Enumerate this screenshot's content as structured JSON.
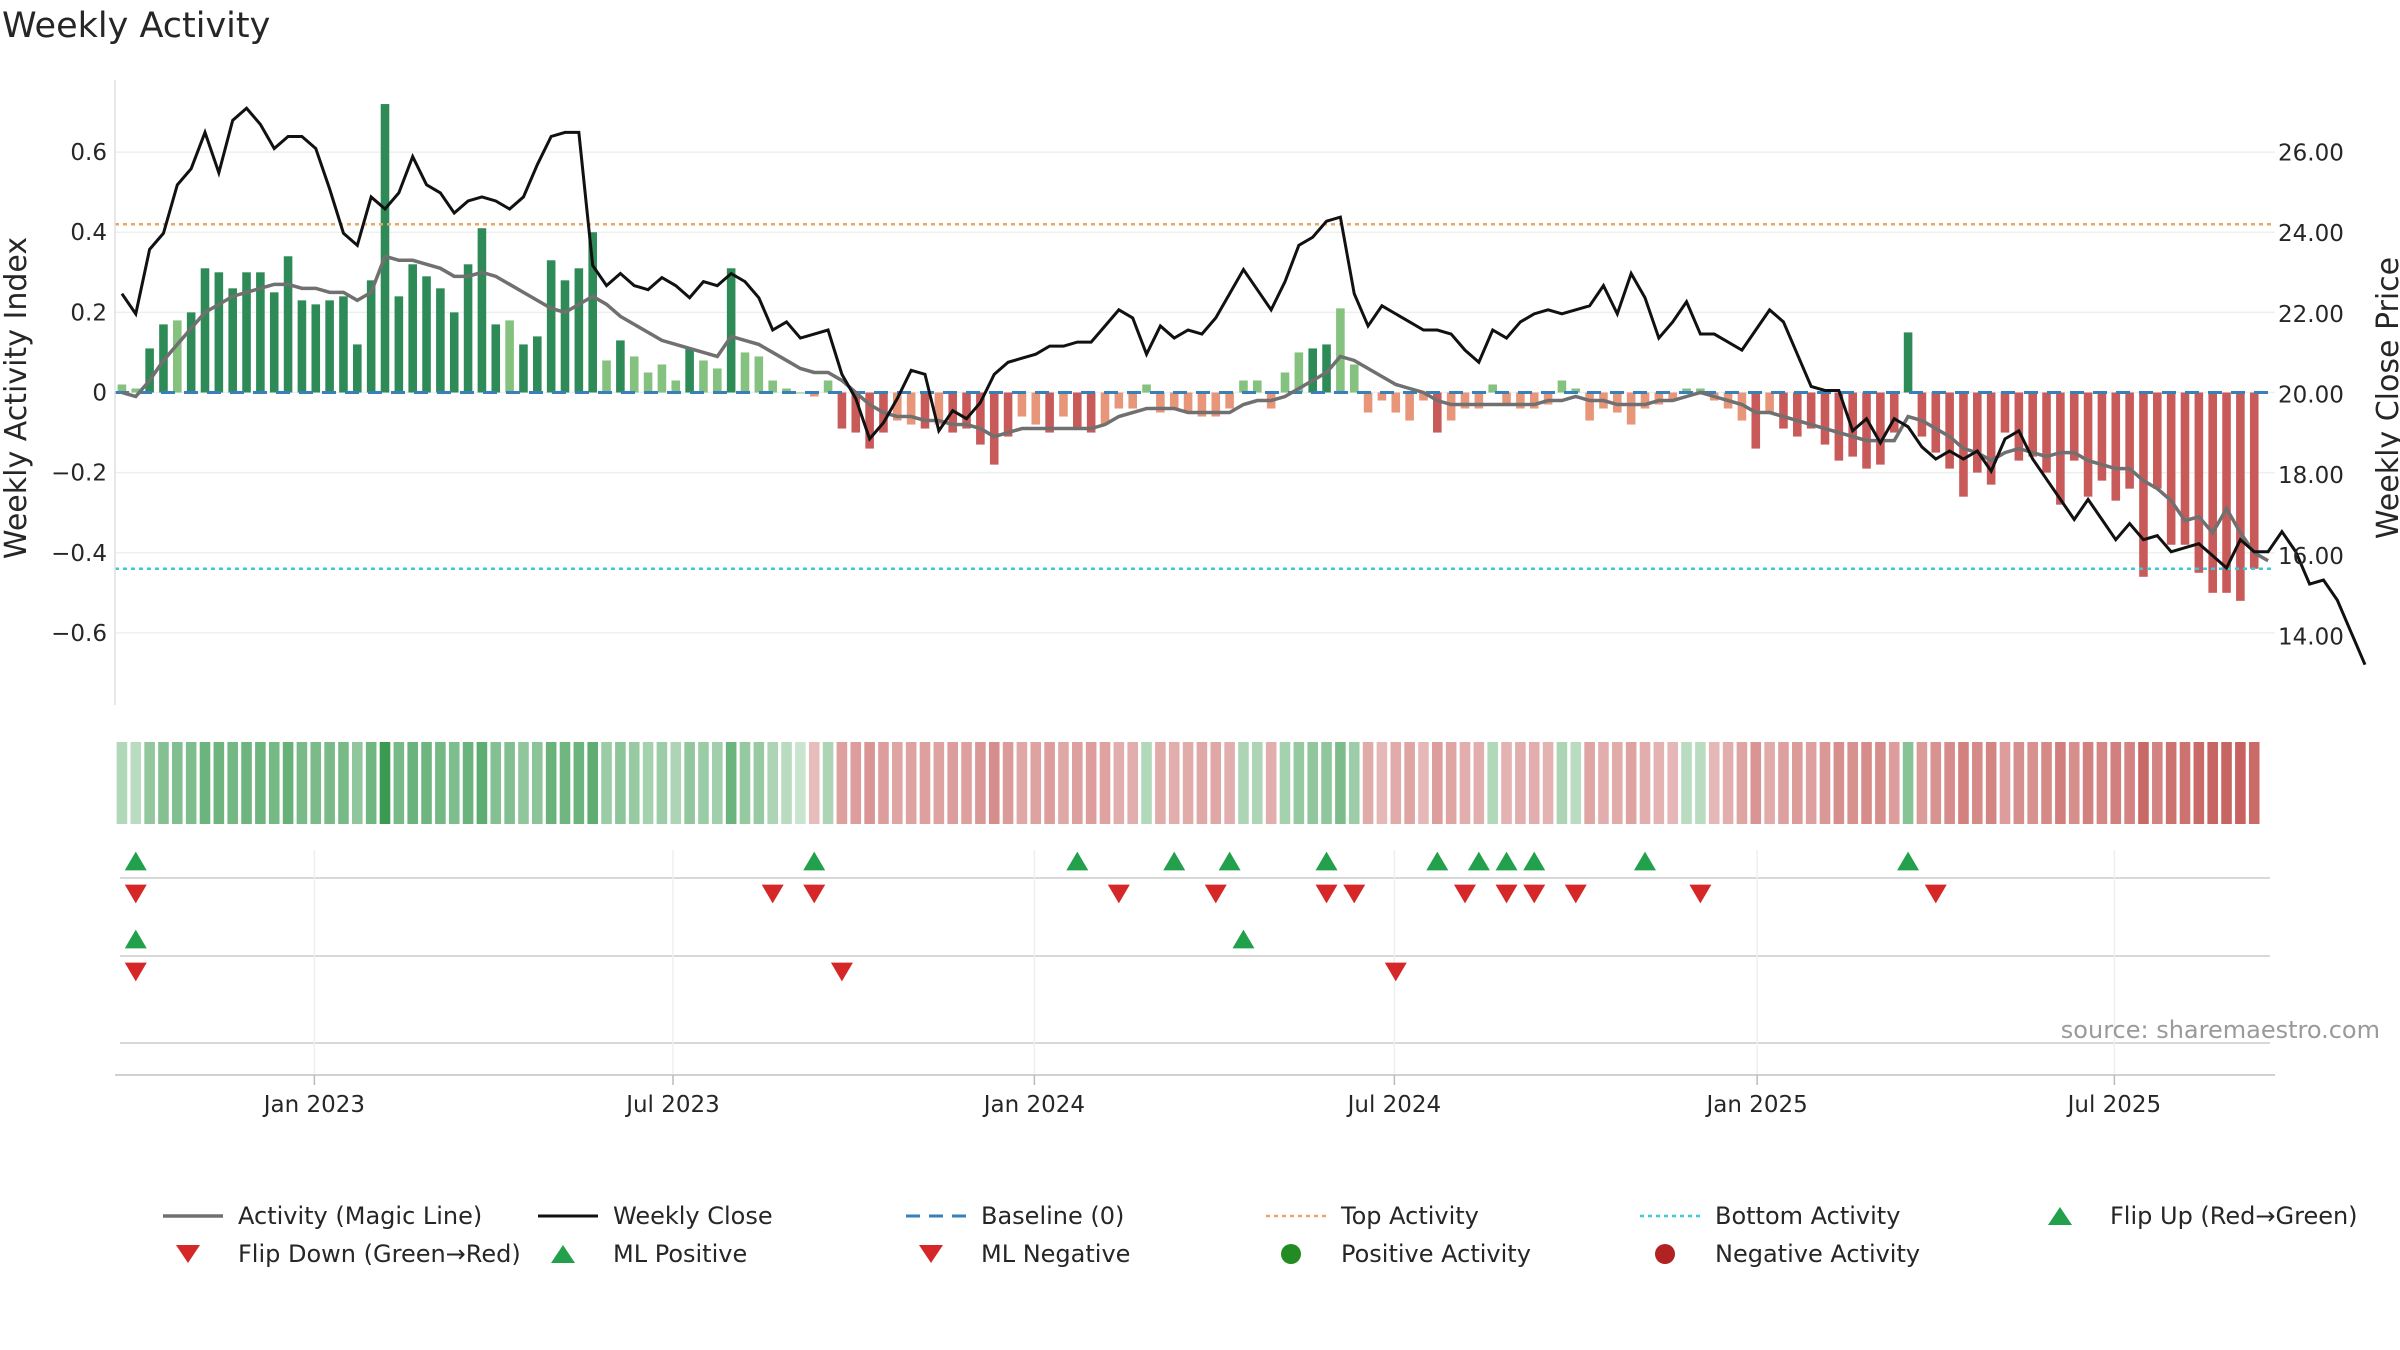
{
  "chart_data": {
    "type": "bar",
    "title": "Weekly Activity",
    "ylabel": "Weekly Activity Index",
    "y2label": "Weekly Close Price",
    "ylim": [
      -0.78,
      0.78
    ],
    "y2lim": [
      12.3,
      27.8
    ],
    "xlim_weeks": [
      0,
      156
    ],
    "yticks": [
      {
        "v": 0.6,
        "label": "0.6"
      },
      {
        "v": 0.4,
        "label": "0.4"
      },
      {
        "v": 0.2,
        "label": "0.2"
      },
      {
        "v": 0,
        "label": "0"
      },
      {
        "v": -0.2,
        "label": "−0.2"
      },
      {
        "v": -0.4,
        "label": "−0.4"
      },
      {
        "v": -0.6,
        "label": "−0.6"
      }
    ],
    "y2ticks": [
      {
        "v": 26,
        "label": "26.00"
      },
      {
        "v": 24,
        "label": "24.00"
      },
      {
        "v": 22,
        "label": "22.00"
      },
      {
        "v": 20,
        "label": "20.00"
      },
      {
        "v": 18,
        "label": "18.00"
      },
      {
        "v": 16,
        "label": "16.00"
      },
      {
        "v": 14,
        "label": "14.00"
      }
    ],
    "xticks": [
      {
        "week": 14.4,
        "label": "Jan 2023"
      },
      {
        "week": 40.3,
        "label": "Jul 2023"
      },
      {
        "week": 66.4,
        "label": "Jan 2024"
      },
      {
        "week": 92.4,
        "label": "Jul 2024"
      },
      {
        "week": 118.6,
        "label": "Jan 2025"
      },
      {
        "week": 144.4,
        "label": "Jul 2025"
      }
    ],
    "top_activity": 0.42,
    "bottom_activity": -0.44,
    "series": [
      {
        "name": "Weekly Activity",
        "type": "bar",
        "values": [
          0.02,
          0.01,
          0.11,
          0.17,
          0.18,
          0.2,
          0.31,
          0.3,
          0.26,
          0.3,
          0.3,
          0.25,
          0.34,
          0.23,
          0.22,
          0.23,
          0.24,
          0.12,
          0.28,
          0.72,
          0.24,
          0.32,
          0.29,
          0.26,
          0.2,
          0.32,
          0.41,
          0.17,
          0.18,
          0.12,
          0.14,
          0.33,
          0.28,
          0.31,
          0.4,
          0.08,
          0.13,
          0.09,
          0.05,
          0.07,
          0.03,
          0.11,
          0.08,
          0.06,
          0.31,
          0.1,
          0.09,
          0.03,
          0.01,
          0,
          -0.01,
          0.03,
          -0.09,
          -0.1,
          -0.14,
          -0.1,
          -0.07,
          -0.08,
          -0.09,
          -0.08,
          -0.1,
          -0.09,
          -0.13,
          -0.18,
          -0.11,
          -0.06,
          -0.08,
          -0.1,
          -0.06,
          -0.09,
          -0.1,
          -0.08,
          -0.04,
          -0.04,
          0.02,
          -0.05,
          -0.04,
          -0.05,
          -0.06,
          -0.06,
          -0.04,
          0.03,
          0.03,
          -0.04,
          0.05,
          0.1,
          0.11,
          0.12,
          0.21,
          0.07,
          -0.05,
          -0.02,
          -0.05,
          -0.07,
          -0.02,
          -0.1,
          -0.07,
          -0.04,
          -0.04,
          0.02,
          -0.03,
          -0.04,
          -0.04,
          -0.03,
          0.03,
          0.01,
          -0.07,
          -0.04,
          -0.05,
          -0.08,
          -0.04,
          -0.03,
          -0.02,
          0.01,
          0.01,
          -0.02,
          -0.04,
          -0.07,
          -0.14,
          -0.05,
          -0.09,
          -0.11,
          -0.09,
          -0.13,
          -0.17,
          -0.16,
          -0.19,
          -0.18,
          -0.1,
          0.15,
          -0.11,
          -0.15,
          -0.19,
          -0.26,
          -0.2,
          -0.23,
          -0.1,
          -0.17,
          -0.16,
          -0.2,
          -0.28,
          -0.17,
          -0.26,
          -0.22,
          -0.27,
          -0.24,
          -0.46,
          -0.24,
          -0.38,
          -0.38,
          -0.45,
          -0.5,
          -0.5,
          -0.52,
          -0.44
        ]
      },
      {
        "name": "Activity (Magic Line)",
        "type": "line",
        "values": [
          0,
          -0.01,
          0.03,
          0.08,
          0.12,
          0.16,
          0.2,
          0.22,
          0.24,
          0.25,
          0.26,
          0.27,
          0.27,
          0.26,
          0.26,
          0.25,
          0.25,
          0.23,
          0.25,
          0.34,
          0.33,
          0.33,
          0.32,
          0.31,
          0.29,
          0.29,
          0.3,
          0.29,
          0.27,
          0.25,
          0.23,
          0.21,
          0.2,
          0.22,
          0.24,
          0.22,
          0.19,
          0.17,
          0.15,
          0.13,
          0.12,
          0.11,
          0.1,
          0.09,
          0.14,
          0.13,
          0.12,
          0.1,
          0.08,
          0.06,
          0.05,
          0.05,
          0.03,
          0,
          -0.03,
          -0.05,
          -0.06,
          -0.06,
          -0.07,
          -0.07,
          -0.08,
          -0.08,
          -0.09,
          -0.11,
          -0.1,
          -0.09,
          -0.09,
          -0.09,
          -0.09,
          -0.09,
          -0.09,
          -0.08,
          -0.06,
          -0.05,
          -0.04,
          -0.04,
          -0.04,
          -0.05,
          -0.05,
          -0.05,
          -0.05,
          -0.03,
          -0.02,
          -0.02,
          -0.01,
          0.01,
          0.03,
          0.05,
          0.09,
          0.08,
          0.06,
          0.04,
          0.02,
          0.01,
          0,
          -0.02,
          -0.03,
          -0.03,
          -0.03,
          -0.03,
          -0.03,
          -0.03,
          -0.03,
          -0.02,
          -0.02,
          -0.01,
          -0.02,
          -0.02,
          -0.03,
          -0.03,
          -0.03,
          -0.02,
          -0.02,
          -0.01,
          0,
          -0.01,
          -0.02,
          -0.03,
          -0.05,
          -0.05,
          -0.06,
          -0.07,
          -0.08,
          -0.09,
          -0.1,
          -0.11,
          -0.12,
          -0.12,
          -0.12,
          -0.06,
          -0.07,
          -0.09,
          -0.11,
          -0.14,
          -0.15,
          -0.17,
          -0.15,
          -0.14,
          -0.15,
          -0.16,
          -0.15,
          -0.15,
          -0.17,
          -0.18,
          -0.19,
          -0.19,
          -0.22,
          -0.24,
          -0.27,
          -0.32,
          -0.31,
          -0.35,
          -0.29,
          -0.35,
          -0.4,
          -0.42
        ]
      },
      {
        "name": "Weekly Close",
        "type": "line",
        "axis": "right",
        "values": [
          22.5,
          22,
          23.6,
          24,
          25.2,
          25.6,
          26.5,
          25.5,
          26.8,
          27.1,
          26.7,
          26.1,
          26.4,
          26.4,
          26.1,
          25.1,
          24,
          23.7,
          24.9,
          24.6,
          25,
          25.9,
          25.2,
          25,
          24.5,
          24.8,
          24.9,
          24.8,
          24.6,
          24.9,
          25.7,
          26.4,
          26.5,
          26.5,
          23.2,
          22.7,
          23,
          22.7,
          22.6,
          22.9,
          22.7,
          22.4,
          22.8,
          22.7,
          23,
          22.8,
          22.4,
          21.6,
          21.8,
          21.4,
          21.5,
          21.6,
          20.5,
          19.9,
          18.9,
          19.3,
          19.9,
          20.6,
          20.5,
          19.1,
          19.6,
          19.4,
          19.8,
          20.5,
          20.8,
          20.9,
          21,
          21.2,
          21.2,
          21.3,
          21.3,
          21.7,
          22.1,
          21.9,
          21,
          21.7,
          21.4,
          21.6,
          21.5,
          21.9,
          22.5,
          23.1,
          22.6,
          22.1,
          22.8,
          23.7,
          23.9,
          24.3,
          24.4,
          22.5,
          21.7,
          22.2,
          22,
          21.8,
          21.6,
          21.6,
          21.5,
          21.1,
          20.8,
          21.6,
          21.4,
          21.8,
          22,
          22.1,
          22,
          22.1,
          22.2,
          22.7,
          22,
          23,
          22.4,
          21.4,
          21.8,
          22.3,
          21.5,
          21.5,
          21.3,
          21.1,
          21.6,
          22.1,
          21.8,
          21,
          20.2,
          20.1,
          20.1,
          19.1,
          19.4,
          18.8,
          19.4,
          19.2,
          18.7,
          18.4,
          18.6,
          18.4,
          18.6,
          18.1,
          18.9,
          19.1,
          18.4,
          17.9,
          17.4,
          16.9,
          17.4,
          16.9,
          16.4,
          16.8,
          16.4,
          16.5,
          16.1,
          16.2,
          16.3,
          16,
          15.7,
          16.4,
          16.1,
          16.1,
          16.6,
          16.1,
          15.3,
          15.4,
          14.9,
          14.1,
          13.3
        ]
      }
    ],
    "flip_up_weeks": [
      1,
      50,
      69,
      76,
      80,
      87,
      95,
      98,
      100,
      102,
      110,
      129
    ],
    "flip_down_weeks": [
      1,
      47,
      50,
      72,
      79,
      87,
      89,
      97,
      100,
      102,
      105,
      114,
      131
    ],
    "ml_positive_weeks": [
      1,
      81
    ],
    "ml_negative_weeks": [
      1,
      52,
      92
    ]
  },
  "colors": {
    "strong_green": "#2e8b57",
    "light_green": "#85c27f",
    "strong_red": "#c95a5a",
    "light_red": "#e8967a",
    "magic_line": "#707070",
    "close_line": "#111111",
    "baseline": "#3a80b8",
    "top_line": "#e8a862",
    "bottom_line": "#3fc6d8",
    "marker_green": "#22a04b",
    "marker_red": "#d62728",
    "dot_green": "#228b22",
    "dot_red": "#b22222"
  },
  "legend": [
    {
      "label": "Activity (Magic Line)",
      "symbol": "line-gray"
    },
    {
      "label": "Weekly Close",
      "symbol": "line-black"
    },
    {
      "label": "Baseline (0)",
      "symbol": "dash-blue"
    },
    {
      "label": "Top Activity",
      "symbol": "dot-orange"
    },
    {
      "label": "Bottom Activity",
      "symbol": "dot-cyan"
    },
    {
      "label": "Flip Up (Red→Green)",
      "symbol": "tri-up-green"
    },
    {
      "label": "Flip Down (Green→Red)",
      "symbol": "tri-down-red"
    },
    {
      "label": "ML Positive",
      "symbol": "tri-up-green"
    },
    {
      "label": "ML Negative",
      "symbol": "tri-down-red"
    },
    {
      "label": "Positive Activity",
      "symbol": "dot-green"
    },
    {
      "label": "Negative Activity",
      "symbol": "dot-red"
    }
  ],
  "source": "source: sharemaestro.com"
}
